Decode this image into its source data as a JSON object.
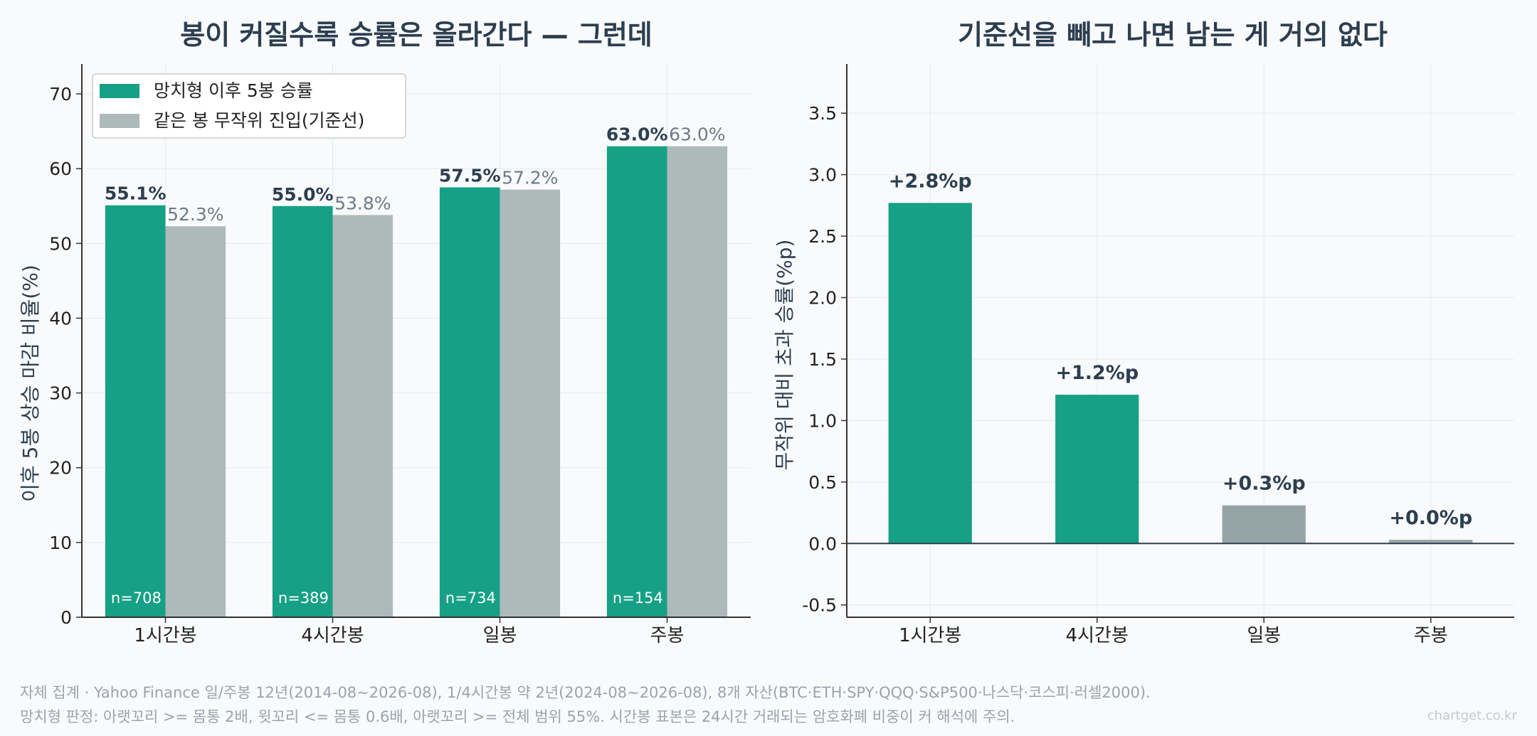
{
  "colors": {
    "accent": "#16a085",
    "baseline": "#aebab9",
    "baseline_dark": "#95a5a6",
    "title": "#2c3e50",
    "muted": "#6c7a89",
    "footer": "#9aa3ac"
  },
  "chart_data": [
    {
      "type": "bar",
      "title": "봉이 커질수록 승률은 올라간다 — 그런데",
      "xlabel": "",
      "ylabel": "이후 5봉 상승 마감 비율(%)",
      "categories": [
        "1시간봉",
        "4시간봉",
        "일봉",
        "주봉"
      ],
      "series": [
        {
          "name": "망치형 이후 5봉 승률",
          "values": [
            55.1,
            55.0,
            57.5,
            63.0
          ],
          "labels": [
            "55.1%",
            "55.0%",
            "57.5%",
            "63.0%"
          ]
        },
        {
          "name": "같은 봉 무작위 진입(기준선)",
          "values": [
            52.3,
            53.8,
            57.2,
            63.0
          ],
          "labels": [
            "52.3%",
            "53.8%",
            "57.2%",
            "63.0%"
          ]
        }
      ],
      "sample_labels": [
        "n=708",
        "n=389",
        "n=734",
        "n=154"
      ],
      "ylim": [
        0,
        74
      ],
      "yticks": [
        "0",
        "10",
        "20",
        "30",
        "40",
        "50",
        "60",
        "70"
      ],
      "grid": true,
      "legend": "top-left"
    },
    {
      "type": "bar",
      "title": "기준선을 빼고 나면 남는 게 거의 없다",
      "xlabel": "",
      "ylabel": "무작위 대비 초과 승률(%p)",
      "categories": [
        "1시간봉",
        "4시간봉",
        "일봉",
        "주봉"
      ],
      "values": [
        2.77,
        1.21,
        0.31,
        0.03
      ],
      "labels": [
        "+2.8%p",
        "+1.2%p",
        "+0.3%p",
        "+0.0%p"
      ],
      "ylim": [
        -0.6,
        3.9
      ],
      "yticks": [
        "-0.5",
        "0.0",
        "0.5",
        "1.0",
        "1.5",
        "2.0",
        "2.5",
        "3.0",
        "3.5"
      ],
      "grid": true
    }
  ],
  "footer": {
    "line1": "자체 집계 · Yahoo Finance 일/주봉 12년(2014-08~2026-08), 1/4시간봉 약 2년(2024-08~2026-08), 8개 자산(BTC·ETH·SPY·QQQ·S&P500·나스닥·코스피·러셀2000).",
    "line2": "망치형 판정: 아랫꼬리 >= 몸통 2배, 윗꼬리 <= 몸통 0.6배, 아랫꼬리 >= 전체 범위 55%. 시간봉 표본은 24시간 거래되는 암호화폐 비중이 커 해석에 주의.",
    "credit": "chartget.co.kr"
  }
}
